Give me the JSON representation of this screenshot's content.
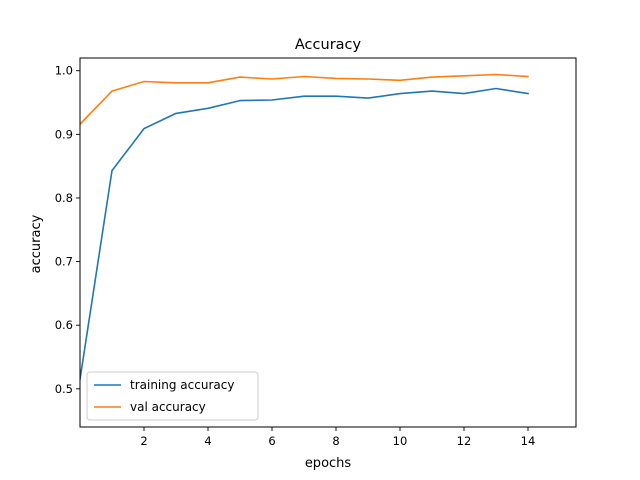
{
  "chart_data": {
    "type": "line",
    "title": "Accuracy",
    "xlabel": "epochs",
    "ylabel": "accuracy",
    "xlim": [
      0,
      15.5
    ],
    "ylim": [
      0.44,
      1.02
    ],
    "xticks": [
      2,
      4,
      6,
      8,
      10,
      12,
      14
    ],
    "yticks": [
      0.5,
      0.6,
      0.7,
      0.8,
      0.9,
      1.0
    ],
    "xtick_labels": [
      "2",
      "4",
      "6",
      "8",
      "10",
      "12",
      "14"
    ],
    "ytick_labels": [
      "0.5",
      "0.6",
      "0.7",
      "0.8",
      "0.9",
      "1.0"
    ],
    "grid": false,
    "legend_position": "lower-left",
    "x": [
      0,
      1,
      2,
      3,
      4,
      5,
      6,
      7,
      8,
      9,
      10,
      11,
      12,
      13,
      14
    ],
    "series": [
      {
        "name": "training accuracy",
        "color": "#1f77b4",
        "values": [
          0.515,
          0.843,
          0.909,
          0.933,
          0.941,
          0.953,
          0.954,
          0.96,
          0.96,
          0.957,
          0.964,
          0.968,
          0.964,
          0.972,
          0.964
        ]
      },
      {
        "name": "val accuracy",
        "color": "#ff7f0e",
        "values": [
          0.916,
          0.968,
          0.983,
          0.981,
          0.981,
          0.99,
          0.987,
          0.991,
          0.988,
          0.987,
          0.985,
          0.99,
          0.992,
          0.994,
          0.991
        ]
      }
    ]
  }
}
